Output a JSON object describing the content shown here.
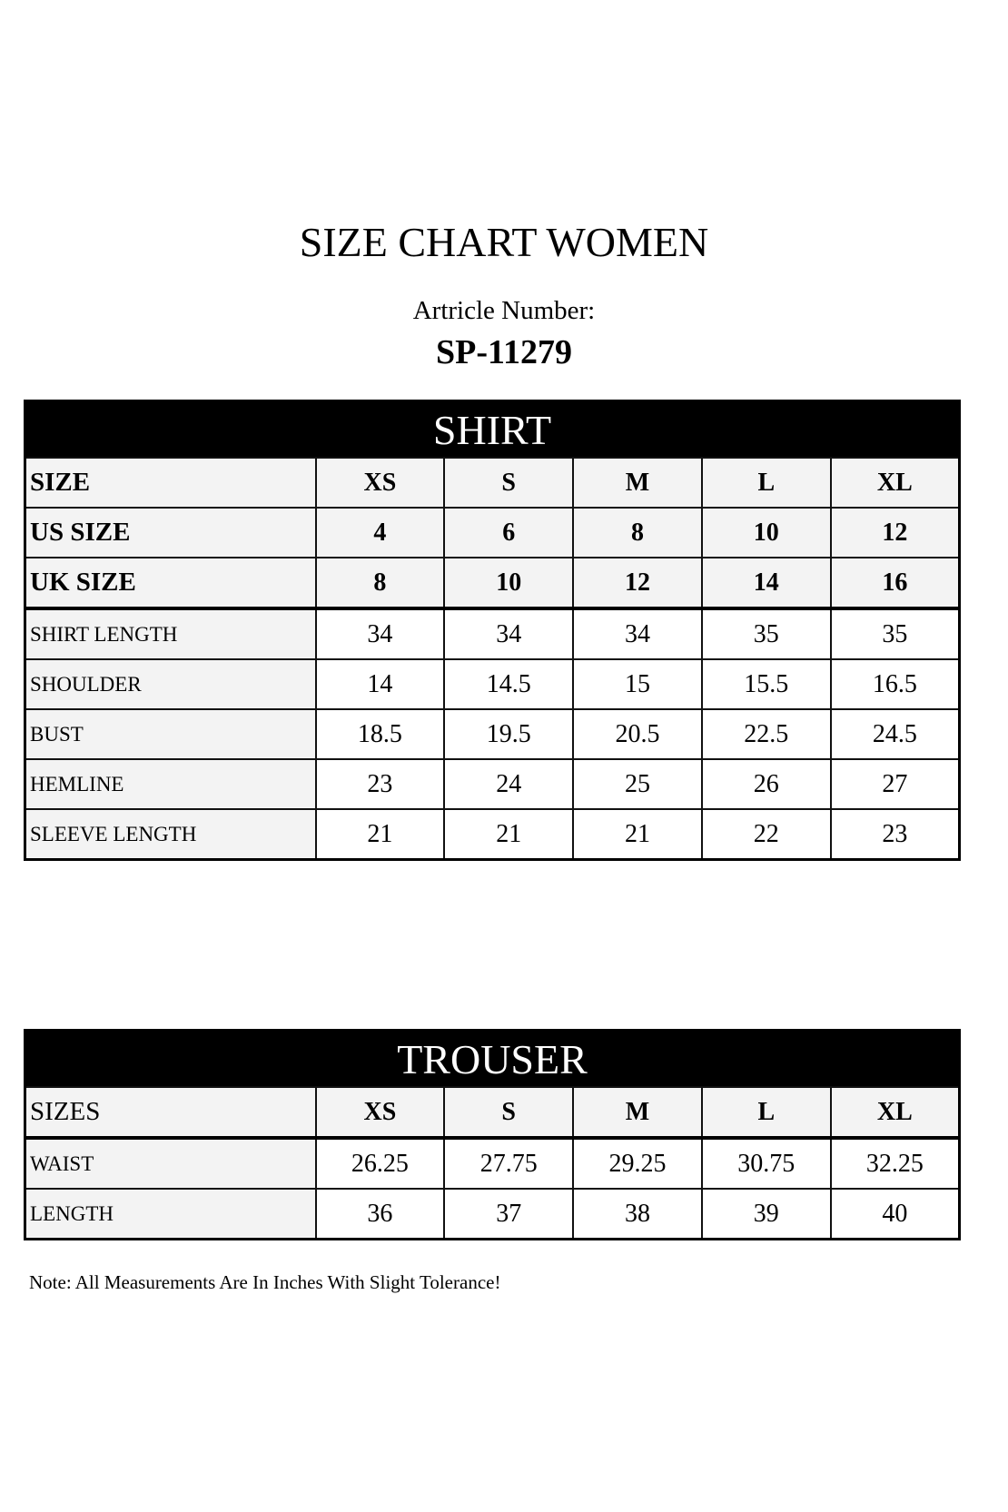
{
  "title": "SIZE CHART WOMEN",
  "article_label": "Artricle Number:",
  "article_number": "SP-11279",
  "shirt": {
    "heading": "SHIRT",
    "header_rows": [
      {
        "label": "SIZE",
        "values": [
          "XS",
          "S",
          "M",
          "L",
          "XL"
        ]
      },
      {
        "label": "US SIZE",
        "values": [
          "4",
          "6",
          "8",
          "10",
          "12"
        ]
      },
      {
        "label": "UK SIZE",
        "values": [
          "8",
          "10",
          "12",
          "14",
          "16"
        ]
      }
    ],
    "rows": [
      {
        "label": "SHIRT LENGTH",
        "values": [
          "34",
          "34",
          "34",
          "35",
          "35"
        ]
      },
      {
        "label": "SHOULDER",
        "values": [
          "14",
          "14.5",
          "15",
          "15.5",
          "16.5"
        ]
      },
      {
        "label": "BUST",
        "values": [
          "18.5",
          "19.5",
          "20.5",
          "22.5",
          "24.5"
        ]
      },
      {
        "label": "HEMLINE",
        "values": [
          "23",
          "24",
          "25",
          "26",
          "27"
        ]
      },
      {
        "label": "SLEEVE LENGTH",
        "values": [
          "21",
          "21",
          "21",
          "22",
          "23"
        ]
      }
    ]
  },
  "trouser": {
    "heading": "TROUSER",
    "header": {
      "label": "SIZES",
      "values": [
        "XS",
        "S",
        "M",
        "L",
        "XL"
      ]
    },
    "rows": [
      {
        "label": "WAIST",
        "values": [
          "26.25",
          "27.75",
          "29.25",
          "30.75",
          "32.25"
        ]
      },
      {
        "label": "LENGTH",
        "values": [
          "36",
          "37",
          "38",
          "39",
          "40"
        ]
      }
    ]
  },
  "note": "Note: All Measurements Are In Inches With Slight Tolerance!"
}
